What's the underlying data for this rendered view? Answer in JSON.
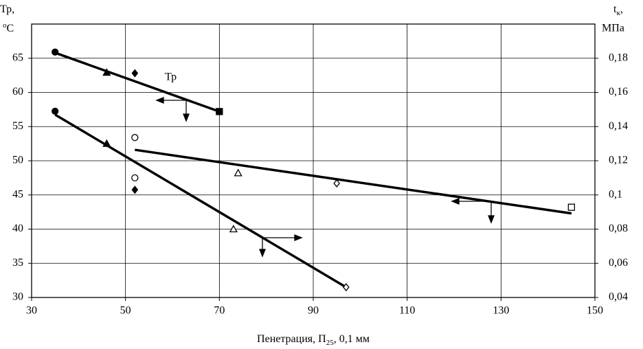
{
  "chart_data": {
    "type": "scatter",
    "annotation": "Тр",
    "x_label": {
      "main": "Пенетрация, П",
      "sub": "25",
      "end": ", 0,1 мм"
    },
    "y_label": {
      "line1": "Тр,",
      "sup": "о",
      "unit": "С"
    },
    "y2_label": {
      "main": "t",
      "sub": "к",
      "end": ",",
      "unit": "МПа"
    },
    "xlim": [
      30,
      150
    ],
    "xticks": [
      30,
      50,
      70,
      90,
      110,
      130,
      150
    ],
    "ylim": [
      30,
      70
    ],
    "yticks": [
      30,
      35,
      40,
      45,
      50,
      55,
      60,
      65
    ],
    "y2lim": [
      0.04,
      0.2
    ],
    "y2ticks": [
      {
        "value": 0.04,
        "label": "0,04"
      },
      {
        "value": 0.06,
        "label": "0,06"
      },
      {
        "value": 0.08,
        "label": "0,08"
      },
      {
        "value": 0.1,
        "label": "0,1"
      },
      {
        "value": 0.12,
        "label": "0,12"
      },
      {
        "value": 0.14,
        "label": "0,14"
      },
      {
        "value": 0.16,
        "label": "0,16"
      },
      {
        "value": 0.18,
        "label": "0,18"
      }
    ],
    "grid": true,
    "color": "#000000",
    "series": [
      {
        "axis": "y",
        "x": [
          35,
          46,
          52,
          70
        ],
        "values": [
          65.9,
          62.9,
          62.8,
          57.2
        ],
        "markers": [
          "circle",
          "triangle",
          "diamond",
          "square"
        ],
        "filled": [
          true,
          true,
          true,
          true
        ]
      },
      {
        "axis": "y2",
        "x": [
          35,
          46,
          52,
          52,
          73,
          97
        ],
        "values": [
          0.149,
          0.13,
          0.11,
          0.103,
          0.08,
          0.046
        ],
        "markers": [
          "circle",
          "triangle",
          "circle",
          "diamond",
          "triangle",
          "diamond"
        ],
        "filled": [
          true,
          true,
          false,
          true,
          false,
          false
        ]
      },
      {
        "axis": "y",
        "x": [
          52,
          74,
          95,
          145
        ],
        "values": [
          53.4,
          48.2,
          46.7,
          43.2
        ],
        "markers": [
          "circle",
          "triangle",
          "diamond",
          "square"
        ],
        "filled": [
          false,
          false,
          false,
          false
        ]
      }
    ],
    "trends": [
      {
        "axis": "y",
        "x": [
          35,
          70
        ],
        "values": [
          65.8,
          57.2
        ]
      },
      {
        "axis": "y2",
        "x": [
          35,
          97
        ],
        "values": [
          0.147,
          0.046
        ]
      },
      {
        "axis": "y",
        "x": [
          52,
          145
        ],
        "values": [
          51.6,
          42.3
        ]
      }
    ]
  }
}
